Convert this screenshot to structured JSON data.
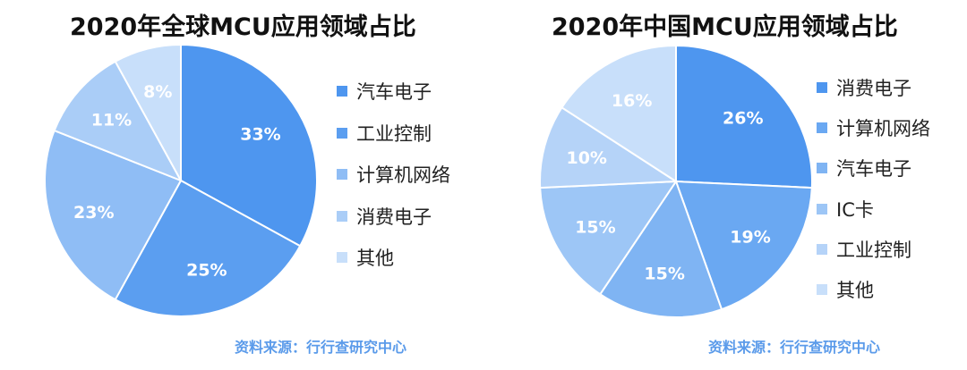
{
  "chart_data": [
    {
      "type": "pie",
      "title": "2020年全球MCU应用领域占比",
      "source": "资料来源：行行查研究中心",
      "slices": [
        {
          "label": "汽车电子",
          "value": 33,
          "display": "33%",
          "color": "#4e96ef"
        },
        {
          "label": "工业控制",
          "value": 25,
          "display": "25%",
          "color": "#5b9ef0"
        },
        {
          "label": "计算机网络",
          "value": 23,
          "display": "23%",
          "color": "#8fbdf5"
        },
        {
          "label": "消费电子",
          "value": 11,
          "display": "11%",
          "color": "#aacdf7"
        },
        {
          "label": "其他",
          "value": 8,
          "display": "8%",
          "color": "#c8dffa"
        }
      ]
    },
    {
      "type": "pie",
      "title": "2020年中国MCU应用领域占比",
      "source": "资料来源：行行查研究中心",
      "slices": [
        {
          "label": "消费电子",
          "value": 26,
          "display": "26%",
          "color": "#4e96ef"
        },
        {
          "label": "计算机网络",
          "value": 19,
          "display": "19%",
          "color": "#6aa8f2"
        },
        {
          "label": "汽车电子",
          "value": 15,
          "display": "15%",
          "color": "#7fb4f3"
        },
        {
          "label": "IC卡",
          "value": 15,
          "display": "15%",
          "color": "#9dc6f6"
        },
        {
          "label": "工业控制",
          "value": 10,
          "display": "10%",
          "color": "#b5d3f8"
        },
        {
          "label": "其他",
          "value": 16,
          "display": "16%",
          "color": "#c8dffa"
        }
      ]
    }
  ]
}
